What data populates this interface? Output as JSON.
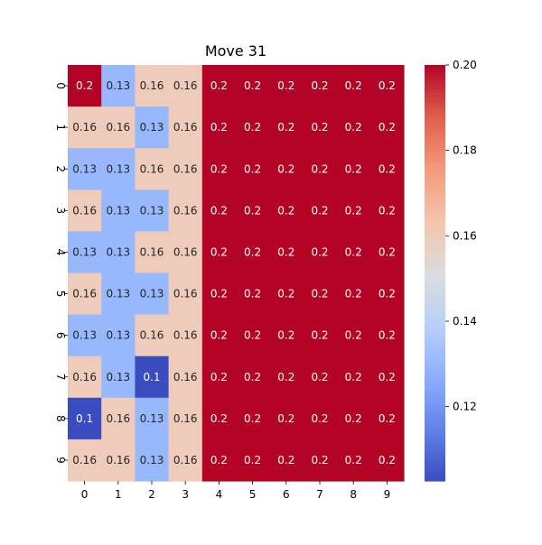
{
  "chart_data": {
    "type": "heatmap",
    "title": "Move 31",
    "xlabel": "",
    "ylabel": "",
    "x_ticks": [
      "0",
      "1",
      "2",
      "3",
      "4",
      "5",
      "6",
      "7",
      "8",
      "9"
    ],
    "y_ticks": [
      "0",
      "1",
      "2",
      "3",
      "4",
      "5",
      "6",
      "7",
      "8",
      "9"
    ],
    "values": [
      [
        0.2,
        0.13,
        0.16,
        0.16,
        0.2,
        0.2,
        0.2,
        0.2,
        0.2,
        0.2
      ],
      [
        0.16,
        0.16,
        0.13,
        0.16,
        0.2,
        0.2,
        0.2,
        0.2,
        0.2,
        0.2
      ],
      [
        0.13,
        0.13,
        0.16,
        0.16,
        0.2,
        0.2,
        0.2,
        0.2,
        0.2,
        0.2
      ],
      [
        0.16,
        0.13,
        0.13,
        0.16,
        0.2,
        0.2,
        0.2,
        0.2,
        0.2,
        0.2
      ],
      [
        0.13,
        0.13,
        0.16,
        0.16,
        0.2,
        0.2,
        0.2,
        0.2,
        0.2,
        0.2
      ],
      [
        0.16,
        0.13,
        0.13,
        0.16,
        0.2,
        0.2,
        0.2,
        0.2,
        0.2,
        0.2
      ],
      [
        0.13,
        0.13,
        0.16,
        0.16,
        0.2,
        0.2,
        0.2,
        0.2,
        0.2,
        0.2
      ],
      [
        0.16,
        0.13,
        0.1,
        0.16,
        0.2,
        0.2,
        0.2,
        0.2,
        0.2,
        0.2
      ],
      [
        0.1,
        0.16,
        0.13,
        0.16,
        0.2,
        0.2,
        0.2,
        0.2,
        0.2,
        0.2
      ],
      [
        0.16,
        0.16,
        0.13,
        0.16,
        0.2,
        0.2,
        0.2,
        0.2,
        0.2,
        0.2
      ]
    ],
    "colormap": "coolwarm",
    "vmin": 0.1026,
    "vmax": 0.2,
    "colorbar_ticks": [
      0.12,
      0.14,
      0.16,
      0.18,
      0.2
    ],
    "colorbar_tick_labels": [
      "0.12",
      "0.14",
      "0.16",
      "0.18",
      "0.20"
    ],
    "grid": false,
    "colorbar_position": "right"
  }
}
